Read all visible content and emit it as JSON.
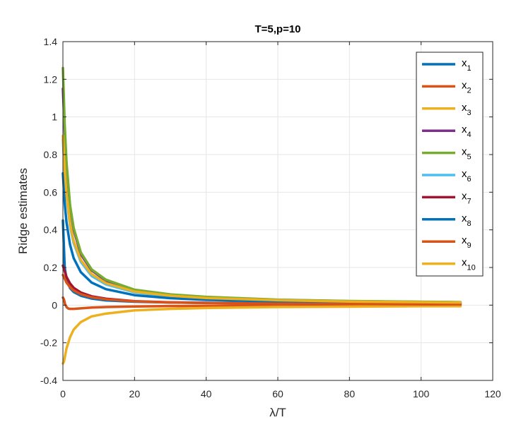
{
  "chart_data": {
    "type": "line",
    "title": "T=5,p=10",
    "xlabel": "λ/T",
    "ylabel": "Ridge estimates",
    "xlim": [
      0,
      120
    ],
    "ylim": [
      -0.4,
      1.4
    ],
    "xticks": [
      0,
      20,
      40,
      60,
      80,
      100,
      120
    ],
    "yticks": [
      -0.4,
      -0.2,
      0,
      0.2,
      0.4,
      0.6,
      0.8,
      1,
      1.2,
      1.4
    ],
    "xtick_labels": [
      "0",
      "20",
      "40",
      "60",
      "80",
      "100",
      "120"
    ],
    "ytick_labels": [
      "-0.4",
      "-0.2",
      "0",
      "0.2",
      "0.4",
      "0.6",
      "0.8",
      "1",
      "1.2",
      "1.4"
    ],
    "grid": true,
    "legend_position": "top-right",
    "x_range": [
      0,
      111
    ],
    "series": [
      {
        "name": "x",
        "sub": "1",
        "color": "#0072BD",
        "x": [
          0,
          0.5,
          1,
          2,
          3,
          5,
          8,
          12,
          20,
          30,
          40,
          60,
          80,
          100,
          111
        ],
        "y": [
          0.45,
          0.2,
          0.14,
          0.09,
          0.07,
          0.05,
          0.035,
          0.025,
          0.018,
          0.014,
          0.012,
          0.01,
          0.009,
          0.008,
          0.008
        ]
      },
      {
        "name": "x",
        "sub": "2",
        "color": "#D95319",
        "x": [
          0,
          0.3,
          0.6,
          1,
          1.5,
          2,
          3,
          5,
          8,
          12,
          20,
          30,
          40,
          60,
          80,
          100,
          111
        ],
        "y": [
          0.04,
          0.03,
          0.005,
          -0.01,
          -0.018,
          -0.02,
          -0.02,
          -0.017,
          -0.013,
          -0.01,
          -0.007,
          -0.005,
          -0.004,
          -0.003,
          -0.002,
          -0.002,
          -0.002
        ]
      },
      {
        "name": "x",
        "sub": "3",
        "color": "#EDB120",
        "x": [
          0,
          0.3,
          0.6,
          1,
          2,
          3,
          5,
          8,
          12,
          20,
          30,
          40,
          60,
          80,
          100,
          111
        ],
        "y": [
          -0.31,
          -0.3,
          -0.27,
          -0.23,
          -0.17,
          -0.13,
          -0.09,
          -0.06,
          -0.045,
          -0.028,
          -0.02,
          -0.015,
          -0.01,
          -0.008,
          -0.006,
          -0.006
        ]
      },
      {
        "name": "x",
        "sub": "4",
        "color": "#7E2F8E",
        "x": [
          0,
          0.5,
          1,
          2,
          3,
          5,
          8,
          12,
          20,
          30,
          40,
          60,
          80,
          100,
          111
        ],
        "y": [
          1.15,
          0.92,
          0.74,
          0.52,
          0.4,
          0.27,
          0.185,
          0.13,
          0.08,
          0.055,
          0.042,
          0.028,
          0.021,
          0.017,
          0.015
        ]
      },
      {
        "name": "x",
        "sub": "5",
        "color": "#77AC30",
        "x": [
          0,
          0.5,
          1,
          2,
          3,
          5,
          8,
          12,
          20,
          30,
          40,
          60,
          80,
          100,
          111
        ],
        "y": [
          1.26,
          0.96,
          0.76,
          0.53,
          0.41,
          0.28,
          0.19,
          0.135,
          0.082,
          0.057,
          0.044,
          0.029,
          0.022,
          0.018,
          0.016
        ]
      },
      {
        "name": "x",
        "sub": "6",
        "color": "#4DBEEE",
        "x": [
          0,
          0.5,
          1,
          2,
          3,
          5,
          8,
          12,
          20,
          30,
          40,
          60,
          80,
          100,
          111
        ],
        "y": [
          0.88,
          0.7,
          0.58,
          0.42,
          0.33,
          0.23,
          0.155,
          0.11,
          0.068,
          0.047,
          0.036,
          0.024,
          0.018,
          0.015,
          0.013
        ]
      },
      {
        "name": "x",
        "sub": "7",
        "color": "#A2142F",
        "x": [
          0,
          0.5,
          1,
          2,
          3,
          5,
          8,
          12,
          20,
          30,
          40,
          60,
          80,
          100,
          111
        ],
        "y": [
          0.21,
          0.18,
          0.15,
          0.115,
          0.092,
          0.067,
          0.047,
          0.034,
          0.021,
          0.015,
          0.012,
          0.008,
          0.006,
          0.005,
          0.004
        ]
      },
      {
        "name": "x",
        "sub": "8",
        "color": "#0072BD",
        "x": [
          0,
          0.5,
          1,
          2,
          3,
          5,
          8,
          12,
          20,
          30,
          40,
          60,
          80,
          100,
          111
        ],
        "y": [
          0.7,
          0.54,
          0.44,
          0.32,
          0.25,
          0.175,
          0.12,
          0.085,
          0.053,
          0.037,
          0.028,
          0.019,
          0.014,
          0.012,
          0.01
        ]
      },
      {
        "name": "x",
        "sub": "9",
        "color": "#D95319",
        "x": [
          0,
          0.5,
          1,
          2,
          3,
          5,
          8,
          12,
          20,
          30,
          40,
          60,
          80,
          100,
          111
        ],
        "y": [
          0.16,
          0.14,
          0.12,
          0.095,
          0.078,
          0.058,
          0.042,
          0.031,
          0.02,
          0.014,
          0.011,
          0.008,
          0.006,
          0.005,
          0.004
        ]
      },
      {
        "name": "x",
        "sub": "10",
        "color": "#EDB120",
        "x": [
          0,
          0.5,
          1,
          2,
          3,
          5,
          8,
          12,
          20,
          30,
          40,
          60,
          80,
          100,
          111
        ],
        "y": [
          0.9,
          0.72,
          0.59,
          0.43,
          0.34,
          0.24,
          0.165,
          0.117,
          0.072,
          0.05,
          0.038,
          0.026,
          0.019,
          0.016,
          0.014
        ]
      }
    ]
  }
}
